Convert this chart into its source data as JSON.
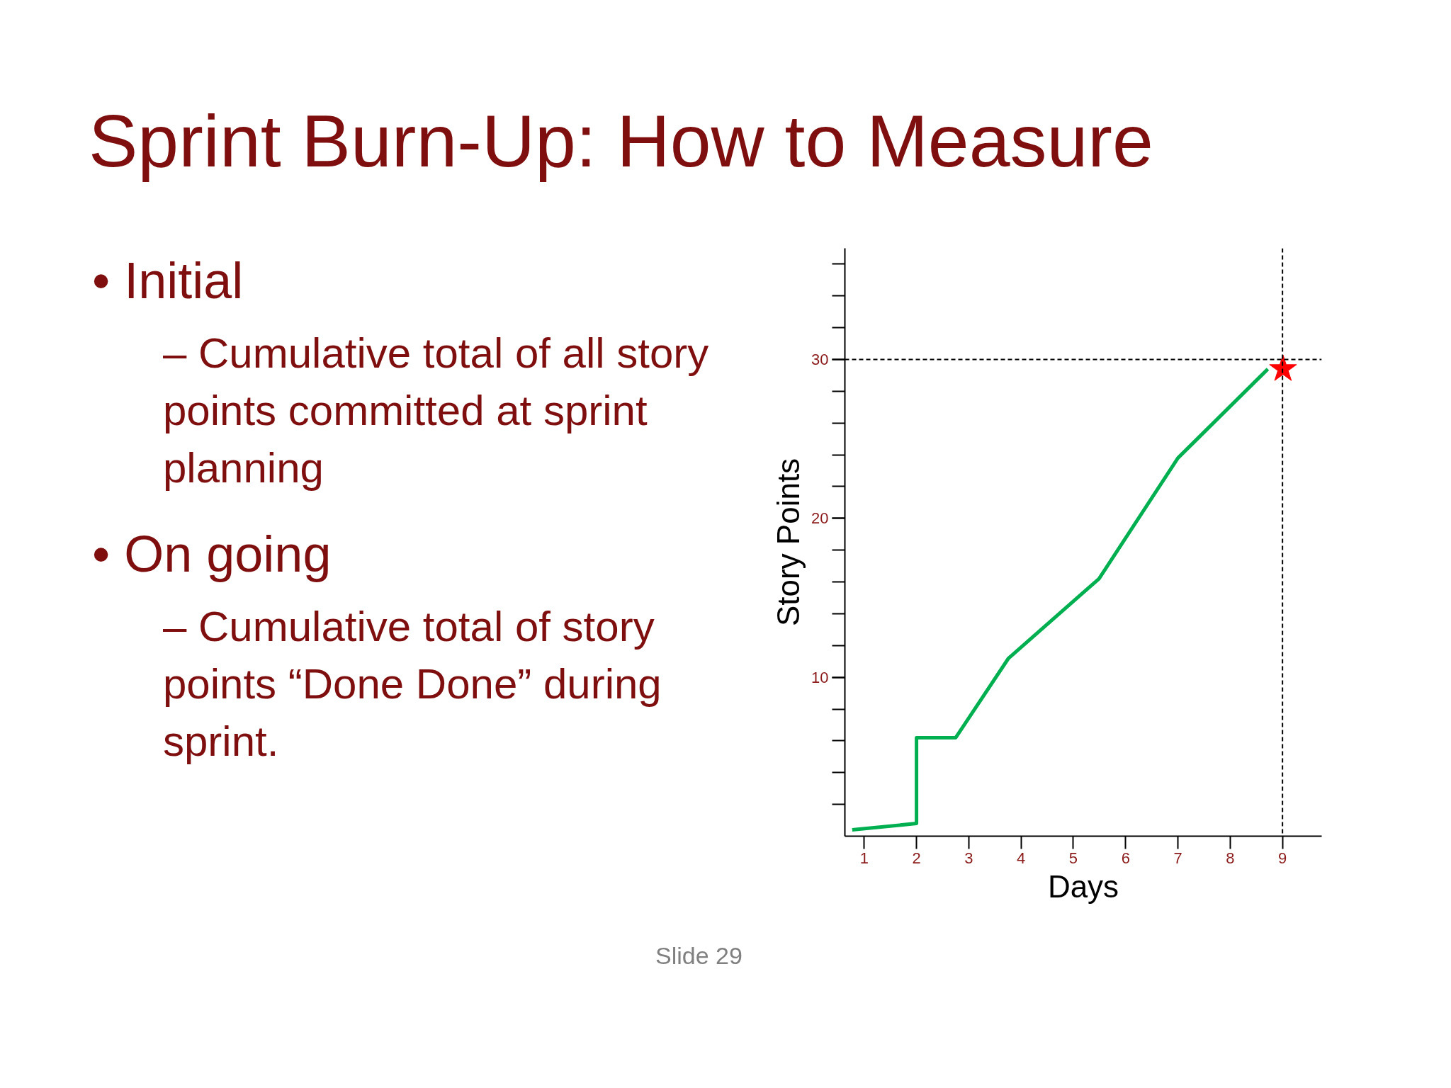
{
  "chart_data": {
    "type": "line",
    "title": "Sprint Burn-Up: How to Measure",
    "xlabel": "Days",
    "ylabel": "Story Points",
    "annotations": [
      "• Initial",
      "– Cumulative total of all story points committed at sprint planning",
      "• On going",
      "– Cumulative total of story points “Done Done” during sprint.",
      "Slide 29"
    ],
    "xlim": [
      0.63,
      9.75
    ],
    "ylim": [
      0,
      37
    ],
    "xticks": [
      1,
      2,
      3,
      4,
      5,
      6,
      7,
      8,
      9
    ],
    "yticks": [
      10,
      20,
      30
    ],
    "series": [
      {
        "color": "#00b050",
        "x": [
          0.77,
          2,
          2,
          2.75,
          3.76,
          5.49,
          7.0,
          8.72
        ],
        "values": [
          0.4,
          0.8,
          6.2,
          6.2,
          11.2,
          16.2,
          23.8,
          29.4
        ]
      },
      {
        "type": "scatter",
        "marker": "star",
        "color": "#ff0000",
        "x": [
          9.01
        ],
        "values": [
          29.4
        ]
      }
    ],
    "ref_lines": [
      {
        "axis": "y",
        "value": 30,
        "color": "#000000",
        "line_style": "dashed"
      },
      {
        "axis": "x",
        "value": 9,
        "color": "#000000",
        "line_style": "dashed"
      }
    ]
  }
}
